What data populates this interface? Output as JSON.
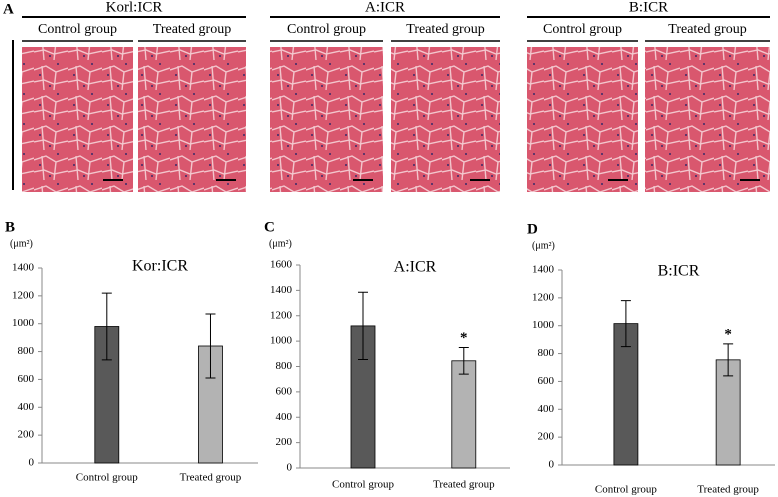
{
  "figure": {
    "panel_label": "A",
    "groups": [
      {
        "title": "Korl:ICR",
        "columns": [
          "Control group",
          "Treated group"
        ]
      },
      {
        "title": "A:ICR",
        "columns": [
          "Control group",
          "Treated group"
        ]
      },
      {
        "title": "B:ICR",
        "columns": [
          "Control group",
          "Treated group"
        ]
      }
    ]
  },
  "chart_data": [
    {
      "type": "bar",
      "panel_label": "B",
      "title": "Kor:ICR",
      "y_label": "(μm²)",
      "categories": [
        "Control group",
        "Treated group"
      ],
      "values": [
        980,
        840
      ],
      "errors": [
        240,
        230
      ],
      "colors": [
        "#595959",
        "#b3b3b3"
      ],
      "ylim": [
        0,
        1400
      ],
      "yticks": [
        0,
        200,
        400,
        600,
        800,
        1000,
        1200,
        1400
      ],
      "annotations": []
    },
    {
      "type": "bar",
      "panel_label": "C",
      "title": "A:ICR",
      "y_label": "(μm²)",
      "categories": [
        "Control group",
        "Treated group"
      ],
      "values": [
        1120,
        845
      ],
      "errors": [
        265,
        105
      ],
      "colors": [
        "#595959",
        "#b3b3b3"
      ],
      "ylim": [
        0,
        1600
      ],
      "yticks": [
        0,
        200,
        400,
        600,
        800,
        1000,
        1200,
        1400,
        1600
      ],
      "annotations": [
        {
          "text": "*",
          "category": "Treated group"
        }
      ]
    },
    {
      "type": "bar",
      "panel_label": "D",
      "title": "B:ICR",
      "y_label": "(μm²)",
      "categories": [
        "Control group",
        "Treated group"
      ],
      "values": [
        1015,
        755
      ],
      "errors": [
        165,
        115
      ],
      "colors": [
        "#595959",
        "#b3b3b3"
      ],
      "ylim": [
        0,
        1400
      ],
      "yticks": [
        0,
        200,
        400,
        600,
        800,
        1000,
        1200,
        1400
      ],
      "annotations": [
        {
          "text": "*",
          "category": "Treated group"
        }
      ]
    }
  ]
}
